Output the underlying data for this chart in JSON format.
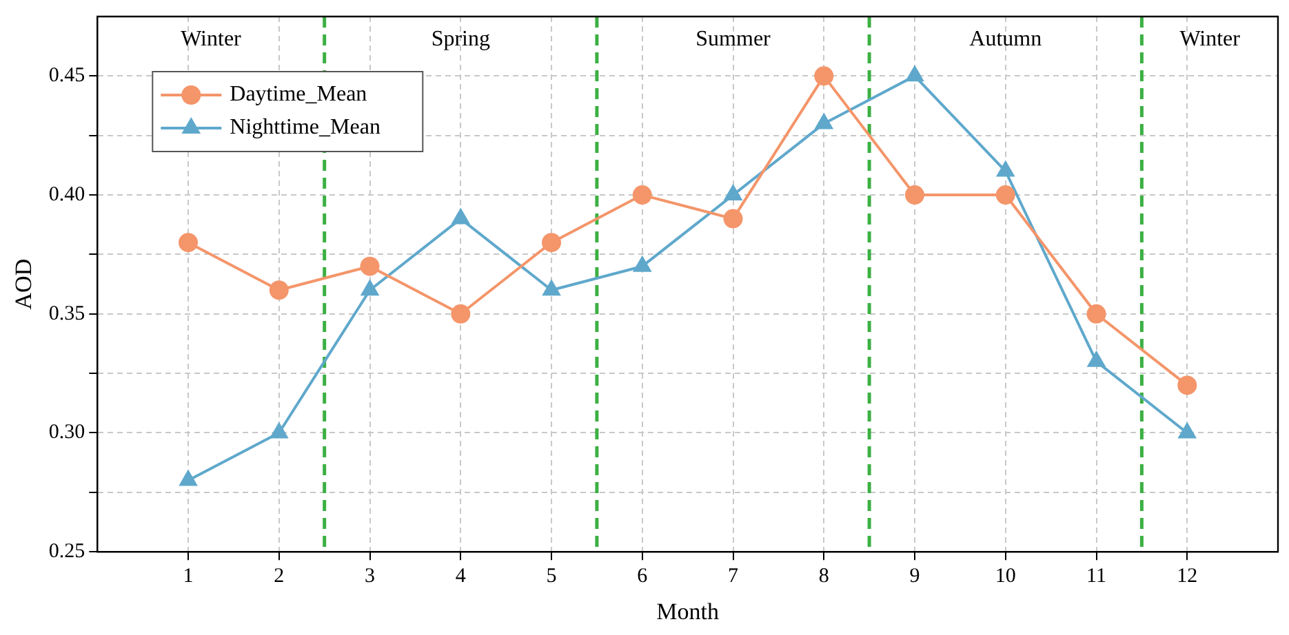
{
  "chart_data": {
    "type": "line",
    "xlabel": "Month",
    "ylabel": "AOD",
    "x": [
      1,
      2,
      3,
      4,
      5,
      6,
      7,
      8,
      9,
      10,
      11,
      12
    ],
    "series": [
      {
        "name": "Daytime_Mean",
        "color": "#f4956a",
        "marker": "circle",
        "values": [
          0.38,
          0.36,
          0.37,
          0.35,
          0.38,
          0.4,
          0.39,
          0.45,
          0.4,
          0.4,
          0.35,
          0.32
        ]
      },
      {
        "name": "Nighttime_Mean",
        "color": "#5fa8cc",
        "marker": "triangle",
        "values": [
          0.28,
          0.3,
          0.36,
          0.39,
          0.36,
          0.37,
          0.4,
          0.43,
          0.45,
          0.41,
          0.33,
          0.3
        ]
      }
    ],
    "xlim": [
      0,
      13
    ],
    "xticks": [
      1,
      2,
      3,
      4,
      5,
      6,
      7,
      8,
      9,
      10,
      11,
      12
    ],
    "ylim": [
      0.25,
      0.475
    ],
    "yticks": [
      {
        "value": 0.25,
        "label": "0.25"
      },
      {
        "value": 0.275,
        "label": null
      },
      {
        "value": 0.3,
        "label": "0.30"
      },
      {
        "value": 0.325,
        "label": null
      },
      {
        "value": 0.35,
        "label": "0.35"
      },
      {
        "value": 0.375,
        "label": null
      },
      {
        "value": 0.4,
        "label": "0.40"
      },
      {
        "value": 0.425,
        "label": null
      },
      {
        "value": 0.45,
        "label": "0.45"
      }
    ],
    "ref_lines": [
      {
        "axis": "x",
        "value": 2.5,
        "color": "#3cb043",
        "line_style": "dashed"
      },
      {
        "axis": "x",
        "value": 5.5,
        "color": "#3cb043",
        "line_style": "dashed"
      },
      {
        "axis": "x",
        "value": 8.5,
        "color": "#3cb043",
        "line_style": "dashed"
      },
      {
        "axis": "x",
        "value": 11.5,
        "color": "#3cb043",
        "line_style": "dashed"
      }
    ],
    "annotations": [
      "Winter",
      "Spring",
      "Summer",
      "Autumn",
      "Winter"
    ],
    "grid": true,
    "legend": "top left",
    "line_style": "solid"
  }
}
